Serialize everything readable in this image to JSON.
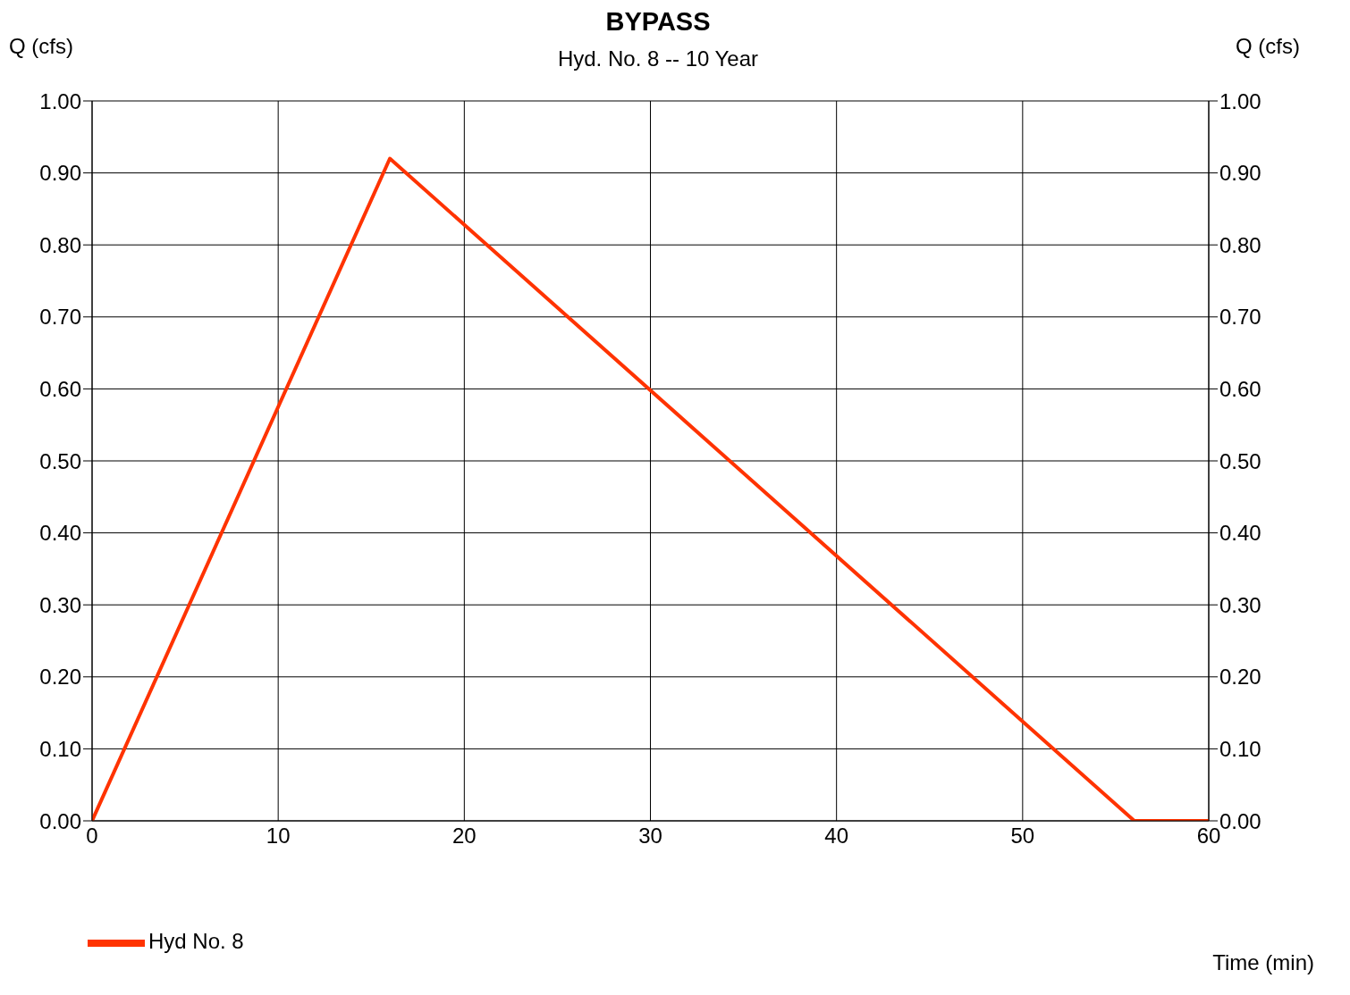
{
  "chart_data": {
    "type": "line",
    "title": "BYPASS",
    "subtitle": "Hyd. No. 8 -- 10 Year",
    "xlabel": "Time (min)",
    "ylabel": "Q (cfs)",
    "y2label": "Q (cfs)",
    "series": [
      {
        "name": "Hyd No. 8",
        "color": "#ff3300",
        "x": [
          0,
          16,
          56,
          60
        ],
        "values": [
          0,
          0.92,
          0,
          0
        ]
      }
    ],
    "xlim": [
      0,
      60
    ],
    "xticks": [
      0,
      10,
      20,
      30,
      40,
      50,
      60
    ],
    "ylim": [
      0,
      1
    ],
    "yticks": [
      {
        "value": 0,
        "label": "0.00"
      },
      {
        "value": 0.1,
        "label": "0.10"
      },
      {
        "value": 0.2,
        "label": "0.20"
      },
      {
        "value": 0.3,
        "label": "0.30"
      },
      {
        "value": 0.4,
        "label": "0.40"
      },
      {
        "value": 0.5,
        "label": "0.50"
      },
      {
        "value": 0.6,
        "label": "0.60"
      },
      {
        "value": 0.7,
        "label": "0.70"
      },
      {
        "value": 0.8,
        "label": "0.80"
      },
      {
        "value": 0.9,
        "label": "0.90"
      },
      {
        "value": 1,
        "label": "1.00"
      }
    ],
    "y2lim": [
      0,
      1
    ],
    "y2ticks": [
      {
        "value": 0,
        "label": "0.00"
      },
      {
        "value": 0.1,
        "label": "0.10"
      },
      {
        "value": 0.2,
        "label": "0.20"
      },
      {
        "value": 0.3,
        "label": "0.30"
      },
      {
        "value": 0.4,
        "label": "0.40"
      },
      {
        "value": 0.5,
        "label": "0.50"
      },
      {
        "value": 0.6,
        "label": "0.60"
      },
      {
        "value": 0.7,
        "label": "0.70"
      },
      {
        "value": 0.8,
        "label": "0.80"
      },
      {
        "value": 0.9,
        "label": "0.90"
      },
      {
        "value": 1,
        "label": "1.00"
      }
    ],
    "grid": true,
    "legend": "bottom left",
    "marker": "none",
    "line_style": "solid"
  }
}
